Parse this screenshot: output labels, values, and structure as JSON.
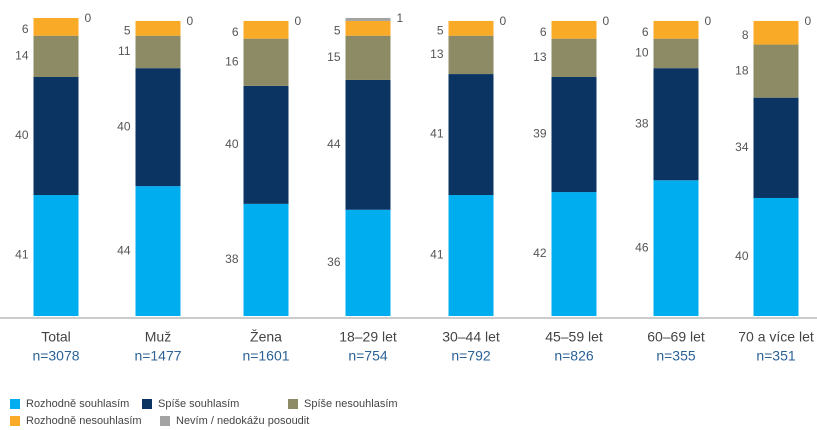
{
  "chart_data": {
    "type": "stacked_bar",
    "categories": [
      "Total",
      "Muž",
      "Žena",
      "18–29 let",
      "30–44 let",
      "45–59 let",
      "60–69 let",
      "70 a více let"
    ],
    "n_labels": [
      "n=3078",
      "n=1477",
      "n=1601",
      "n=754",
      "n=792",
      "n=826",
      "n=355",
      "n=351"
    ],
    "series": [
      {
        "name": "Rozhodně souhlasím",
        "color": "#00aeef",
        "values": [
          41,
          44,
          38,
          36,
          41,
          42,
          46,
          40
        ]
      },
      {
        "name": "Spíše souhlasím",
        "color": "#0b3463",
        "values": [
          40,
          40,
          40,
          44,
          41,
          39,
          38,
          34
        ]
      },
      {
        "name": "Spíše nesouhlasím",
        "color": "#8d8b65",
        "values": [
          14,
          11,
          16,
          15,
          13,
          13,
          10,
          18
        ]
      },
      {
        "name": "Rozhodně nesouhlasím",
        "color": "#f9aa27",
        "values": [
          6,
          5,
          6,
          5,
          5,
          6,
          6,
          8
        ]
      },
      {
        "name": "Nevím / nedokážu posoudit",
        "color": "#a3a3a3",
        "values": [
          0,
          0,
          0,
          1,
          0,
          0,
          0,
          0
        ]
      }
    ],
    "ylim": [
      0,
      101
    ]
  }
}
